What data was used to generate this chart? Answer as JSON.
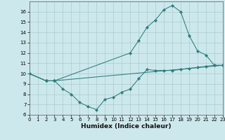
{
  "xlabel": "Humidex (Indice chaleur)",
  "background_color": "#cde8ec",
  "grid_color": "#aacccc",
  "line_color": "#2d7d7d",
  "xlim": [
    0,
    23
  ],
  "ylim": [
    6,
    17
  ],
  "xticks": [
    0,
    1,
    2,
    3,
    4,
    5,
    6,
    7,
    8,
    9,
    10,
    11,
    12,
    13,
    14,
    15,
    16,
    17,
    18,
    19,
    20,
    21,
    22,
    23
  ],
  "yticks": [
    6,
    7,
    8,
    9,
    10,
    11,
    12,
    13,
    14,
    15,
    16
  ],
  "line1_x": [
    0,
    2,
    3,
    4,
    5,
    6,
    7,
    8,
    9,
    10,
    11,
    12,
    13,
    14,
    15,
    16,
    17,
    18,
    19,
    20,
    21,
    22,
    23
  ],
  "line1_y": [
    10,
    9.3,
    9.3,
    8.5,
    8.0,
    7.2,
    6.8,
    6.5,
    7.5,
    7.7,
    8.2,
    8.5,
    9.5,
    10.4,
    10.3,
    10.3,
    10.3,
    10.4,
    10.5,
    10.6,
    10.7,
    10.8,
    10.8
  ],
  "line2_x": [
    0,
    2,
    3,
    12,
    13,
    14,
    15,
    16,
    17,
    18,
    19,
    20,
    21,
    22,
    23
  ],
  "line2_y": [
    10,
    9.3,
    9.3,
    12.0,
    13.2,
    14.5,
    15.2,
    16.2,
    16.6,
    16.0,
    13.7,
    12.2,
    11.8,
    10.8,
    10.8
  ],
  "line3_x": [
    0,
    2,
    3,
    23
  ],
  "line3_y": [
    10,
    9.3,
    9.3,
    10.8
  ],
  "tick_fontsize": 5,
  "xlabel_fontsize": 6.5
}
